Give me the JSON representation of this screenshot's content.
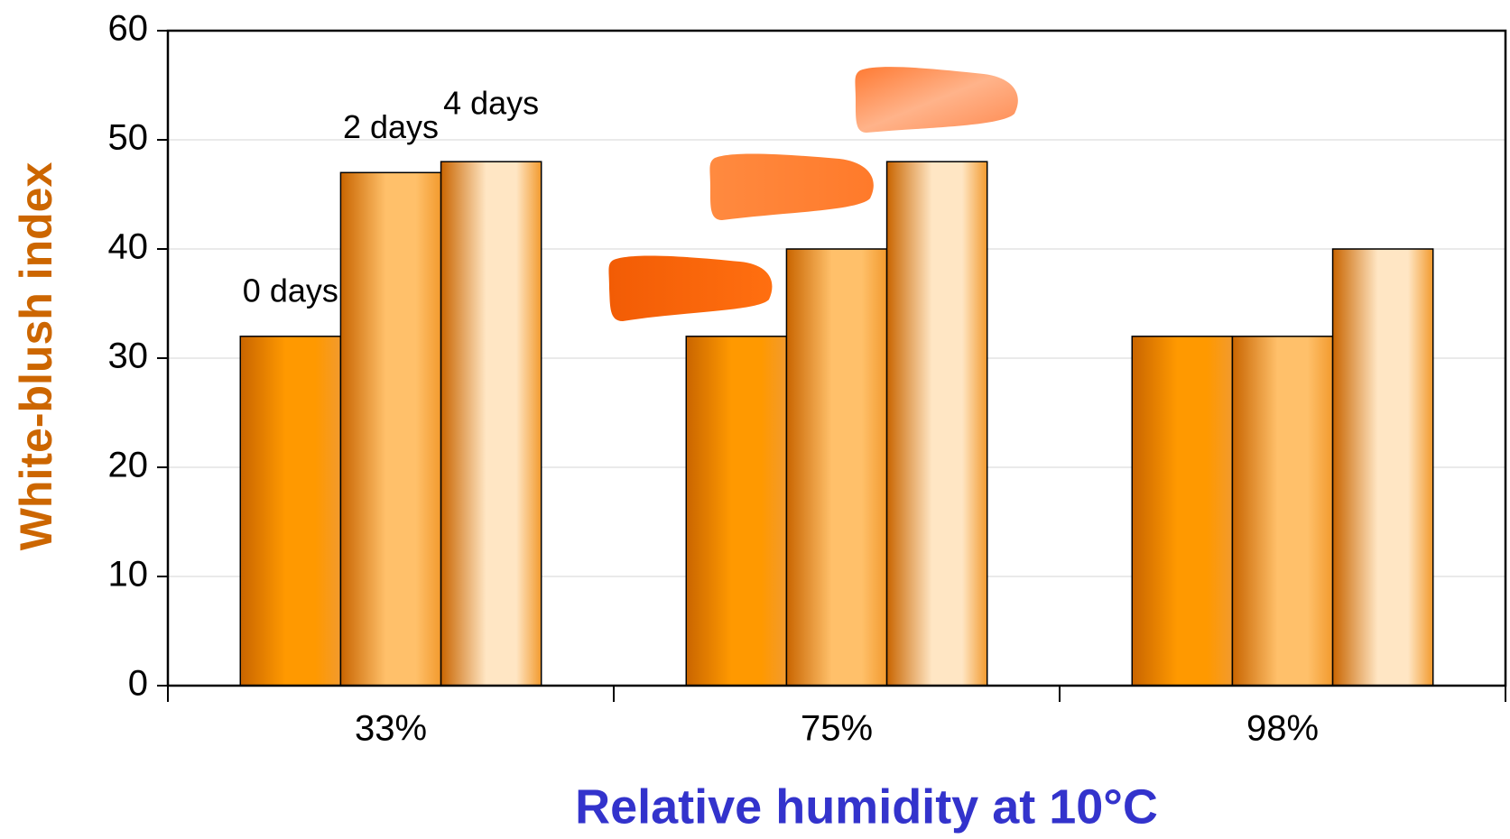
{
  "chart_data": {
    "type": "bar",
    "x_label": "Relative humidity at 10°C",
    "y_label": "White-blush index",
    "categories": [
      "33%",
      "75%",
      "98%"
    ],
    "series": [
      {
        "name": "0 days",
        "color": "#ff9900",
        "values": [
          32,
          32,
          32
        ]
      },
      {
        "name": "2 days",
        "color": "#ffc06a",
        "values": [
          47,
          40,
          32
        ]
      },
      {
        "name": "4 days",
        "color": "#ffe6c4",
        "values": [
          48,
          48,
          40
        ]
      }
    ],
    "ylim": [
      0,
      60
    ],
    "yticks": [
      0,
      10,
      20,
      30,
      40,
      50,
      60
    ],
    "grid": true
  }
}
